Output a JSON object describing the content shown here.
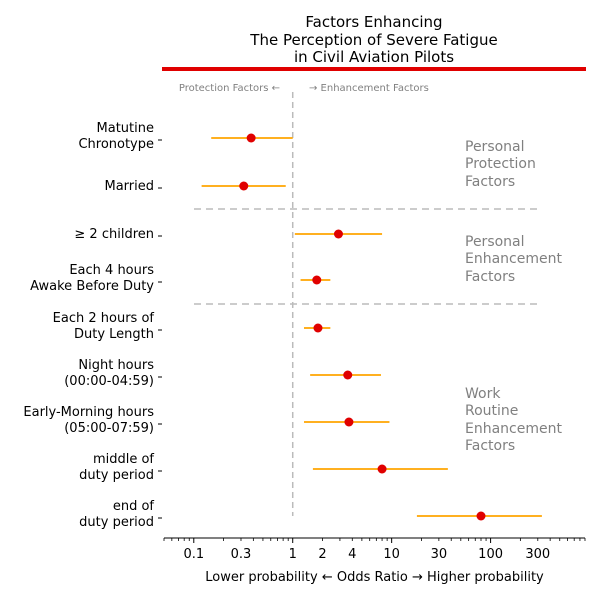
{
  "chart_data": {
    "type": "forest",
    "title": [
      "Factors Enhancing",
      "The Perception of Severe Fatigue",
      "in Civil Aviation Pilots"
    ],
    "xlabel": "Lower probability ← Odds Ratio → Higher probability",
    "x_scale": "log",
    "xlim": [
      0.05,
      900
    ],
    "x_ticks": [
      {
        "value": 0.1,
        "label": "0.1"
      },
      {
        "value": 0.3,
        "label": "0.3"
      },
      {
        "value": 1,
        "label": "1"
      },
      {
        "value": 2,
        "label": "2"
      },
      {
        "value": 4,
        "label": "4"
      },
      {
        "value": 10,
        "label": "10"
      },
      {
        "value": 30,
        "label": "30"
      },
      {
        "value": 100,
        "label": "100"
      },
      {
        "value": 300,
        "label": "300"
      }
    ],
    "reference_line": 1,
    "direction_labels": {
      "left": "Protection Factors ←",
      "right": "→ Enhancement Factors"
    },
    "groups": [
      {
        "label": [
          "Personal",
          "Protection",
          "Factors"
        ]
      },
      {
        "label": [
          "Personal",
          "Enhancement",
          "Factors"
        ]
      },
      {
        "label": [
          "Work",
          "Routine",
          "Enhancement",
          "Factors"
        ]
      }
    ],
    "rows": [
      {
        "label": [
          "Matutine",
          "Chronotype"
        ],
        "or": 0.38,
        "ci": [
          0.15,
          1.0
        ]
      },
      {
        "label": [
          "Married"
        ],
        "or": 0.32,
        "ci": [
          0.12,
          0.85
        ]
      },
      {
        "label": [
          "≥  2 children"
        ],
        "or": 2.9,
        "ci": [
          1.05,
          8.0
        ]
      },
      {
        "label": [
          "Each 4 hours",
          "Awake Before Duty"
        ],
        "or": 1.75,
        "ci": [
          1.2,
          2.4
        ]
      },
      {
        "label": [
          "Each 2 hours of",
          "Duty Length"
        ],
        "or": 1.8,
        "ci": [
          1.3,
          2.4
        ]
      },
      {
        "label": [
          "Night hours",
          "(00:00-04:59)"
        ],
        "or": 3.6,
        "ci": [
          1.5,
          7.8
        ]
      },
      {
        "label": [
          "Early-Morning hours",
          "(05:00-07:59)"
        ],
        "or": 3.7,
        "ci": [
          1.3,
          9.5
        ]
      },
      {
        "label": [
          "middle of",
          "duty period"
        ],
        "or": 8.0,
        "ci": [
          1.6,
          37
        ]
      },
      {
        "label": [
          "end of",
          "duty period"
        ],
        "or": 80,
        "ci": [
          18,
          330
        ]
      }
    ],
    "colors": {
      "title_bar": "#e00000",
      "point": "#e00000",
      "whisker": "#ffa500",
      "reference": "#bbbbbb",
      "separator": "#bbbbbb",
      "group_text": "#808080",
      "direction_text": "#808080"
    }
  }
}
